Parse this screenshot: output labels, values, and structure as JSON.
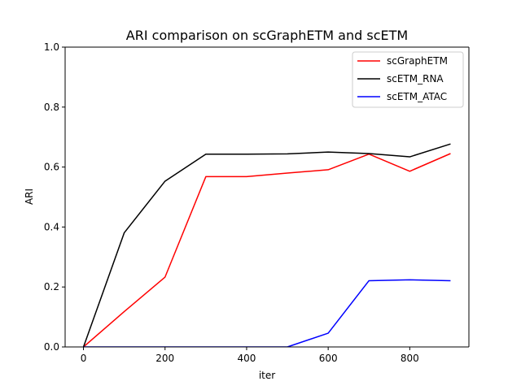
{
  "chart_data": {
    "type": "line",
    "title": "ARI comparison on scGraphETM and scETM",
    "xlabel": "iter",
    "ylabel": "ARI",
    "xlim": [
      -45,
      945
    ],
    "ylim": [
      0,
      1.0
    ],
    "xticks": [
      0,
      200,
      400,
      600,
      800
    ],
    "yticks": [
      0.0,
      0.2,
      0.4,
      0.6,
      0.8,
      1.0
    ],
    "xtick_labels": [
      "0",
      "200",
      "400",
      "600",
      "800"
    ],
    "ytick_labels": [
      "0.0",
      "0.2",
      "0.4",
      "0.6",
      "0.8",
      "1.0"
    ],
    "grid": false,
    "legend_position": "top-right",
    "x": [
      0,
      100,
      200,
      300,
      400,
      500,
      600,
      700,
      800,
      900
    ],
    "series": [
      {
        "name": "scGraphETM",
        "color": "#ff0000",
        "values": [
          0.0,
          0.118,
          0.233,
          0.568,
          0.568,
          0.58,
          0.591,
          0.643,
          0.586,
          0.645
        ]
      },
      {
        "name": "scETM_RNA",
        "color": "#000000",
        "values": [
          0.0,
          0.381,
          0.553,
          0.643,
          0.643,
          0.644,
          0.65,
          0.645,
          0.634,
          0.677
        ]
      },
      {
        "name": "scETM_ATAC",
        "color": "#0000ff",
        "values": [
          0.0,
          0.0,
          0.0,
          0.0,
          0.0,
          0.0,
          0.046,
          0.221,
          0.224,
          0.221
        ]
      }
    ]
  }
}
